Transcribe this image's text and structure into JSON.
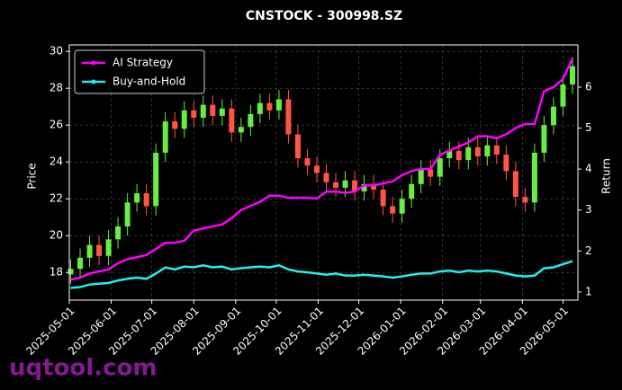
{
  "chart_data": {
    "type": "candlestick",
    "title": "CNSTOCK - 300998.SZ",
    "ylabel": "Price",
    "y2label": "Return",
    "watermark": "uqtool.com",
    "x": [
      "2025-05-02",
      "2025-05-09",
      "2025-05-16",
      "2025-05-23",
      "2025-05-30",
      "2025-06-06",
      "2025-06-13",
      "2025-06-20",
      "2025-06-27",
      "2025-07-04",
      "2025-07-11",
      "2025-07-18",
      "2025-07-25",
      "2025-08-01",
      "2025-08-08",
      "2025-08-15",
      "2025-08-22",
      "2025-08-29",
      "2025-09-05",
      "2025-09-12",
      "2025-09-19",
      "2025-09-26",
      "2025-10-03",
      "2025-10-10",
      "2025-10-17",
      "2025-10-24",
      "2025-10-31",
      "2025-11-07",
      "2025-11-14",
      "2025-11-21",
      "2025-11-28",
      "2025-12-05",
      "2025-12-12",
      "2025-12-19",
      "2025-12-26",
      "2026-01-02",
      "2026-01-09",
      "2026-01-16",
      "2026-01-23",
      "2026-01-30",
      "2026-02-06",
      "2026-02-13",
      "2026-02-20",
      "2026-02-27",
      "2026-03-06",
      "2026-03-13",
      "2026-03-20",
      "2026-03-27",
      "2026-04-03",
      "2026-04-10",
      "2026-04-17",
      "2026-04-24",
      "2026-05-01",
      "2026-05-08"
    ],
    "open": [
      17.9,
      18.2,
      18.8,
      19.5,
      18.9,
      19.8,
      20.5,
      21.8,
      22.3,
      21.6,
      24.5,
      26.2,
      25.8,
      26.8,
      26.4,
      27.1,
      26.5,
      26.9,
      25.6,
      25.9,
      26.6,
      27.2,
      26.8,
      27.4,
      25.5,
      24.2,
      23.8,
      23.4,
      22.9,
      22.6,
      23.0,
      22.4,
      22.8,
      22.5,
      21.6,
      21.2,
      22.0,
      22.8,
      23.6,
      23.2,
      24.2,
      24.6,
      24.1,
      24.8,
      24.3,
      24.9,
      24.4,
      23.5,
      22.1,
      21.8,
      24.5,
      26.0,
      27.0,
      28.2
    ],
    "high": [
      18.7,
      19.3,
      20.0,
      20.0,
      20.3,
      21.0,
      22.3,
      22.8,
      22.8,
      25.0,
      26.7,
      26.7,
      27.3,
      27.3,
      27.6,
      27.6,
      27.4,
      27.4,
      26.4,
      27.1,
      27.7,
      27.7,
      27.9,
      27.9,
      26.0,
      24.7,
      24.3,
      23.9,
      23.4,
      23.5,
      23.5,
      23.3,
      23.3,
      23.0,
      22.1,
      22.5,
      23.3,
      24.1,
      24.1,
      24.7,
      25.1,
      25.1,
      25.3,
      25.3,
      25.4,
      25.4,
      24.9,
      24.0,
      22.6,
      25.0,
      26.5,
      27.5,
      28.7,
      29.7
    ],
    "low": [
      17.4,
      17.7,
      18.3,
      18.4,
      18.4,
      19.3,
      20.0,
      21.3,
      21.1,
      21.1,
      24.0,
      25.3,
      25.3,
      25.9,
      25.9,
      26.0,
      26.0,
      25.1,
      25.1,
      25.4,
      26.1,
      26.3,
      26.3,
      25.0,
      23.7,
      23.3,
      22.9,
      22.4,
      22.1,
      22.1,
      21.9,
      21.9,
      22.0,
      21.1,
      20.7,
      20.7,
      21.5,
      22.3,
      22.7,
      22.7,
      23.7,
      23.6,
      23.6,
      23.8,
      23.8,
      23.9,
      23.0,
      21.6,
      21.3,
      21.3,
      24.0,
      25.5,
      26.5,
      27.7
    ],
    "close": [
      18.2,
      18.8,
      19.5,
      18.9,
      19.8,
      20.5,
      21.8,
      22.3,
      21.6,
      24.5,
      26.2,
      25.8,
      26.8,
      26.4,
      27.1,
      26.5,
      26.9,
      25.6,
      25.9,
      26.6,
      27.2,
      26.8,
      27.4,
      25.5,
      24.2,
      23.8,
      23.4,
      22.9,
      22.6,
      23.0,
      22.4,
      22.8,
      22.5,
      21.6,
      21.2,
      22.0,
      22.8,
      23.6,
      23.2,
      24.2,
      24.6,
      24.1,
      24.8,
      24.3,
      24.9,
      24.4,
      23.5,
      22.1,
      21.8,
      24.5,
      26.0,
      27.0,
      28.2,
      29.2
    ],
    "up_color": "#66ee44",
    "down_color": "#ff5544",
    "series": [
      {
        "name": "AI Strategy",
        "color": "#ff00ff",
        "axis": "y2",
        "values": [
          1.3,
          1.35,
          1.45,
          1.5,
          1.55,
          1.7,
          1.8,
          1.85,
          1.9,
          2.05,
          2.2,
          2.2,
          2.25,
          2.5,
          2.55,
          2.6,
          2.65,
          2.8,
          3.0,
          3.1,
          3.2,
          3.35,
          3.35,
          3.3,
          3.3,
          3.3,
          3.28,
          3.45,
          3.45,
          3.42,
          3.45,
          3.6,
          3.6,
          3.65,
          3.7,
          3.85,
          3.95,
          4.0,
          4.0,
          4.35,
          4.45,
          4.55,
          4.65,
          4.8,
          4.8,
          4.75,
          4.85,
          5.0,
          5.1,
          5.1,
          5.9,
          6.0,
          6.2,
          6.7
        ]
      },
      {
        "name": "Buy-and-Hold",
        "color": "#22eeee",
        "axis": "y2",
        "values": [
          1.1,
          1.12,
          1.18,
          1.2,
          1.22,
          1.28,
          1.32,
          1.35,
          1.32,
          1.45,
          1.6,
          1.55,
          1.62,
          1.6,
          1.65,
          1.6,
          1.62,
          1.55,
          1.58,
          1.6,
          1.62,
          1.6,
          1.65,
          1.55,
          1.5,
          1.48,
          1.45,
          1.42,
          1.45,
          1.4,
          1.4,
          1.42,
          1.4,
          1.38,
          1.35,
          1.38,
          1.42,
          1.45,
          1.45,
          1.5,
          1.52,
          1.48,
          1.52,
          1.5,
          1.52,
          1.5,
          1.45,
          1.4,
          1.38,
          1.4,
          1.58,
          1.6,
          1.68,
          1.75
        ]
      }
    ],
    "xlim": [
      "2025-05-01",
      "2026-05-12"
    ],
    "xticks": [
      "2025-05-01",
      "2025-06-01",
      "2025-07-01",
      "2025-08-01",
      "2025-09-01",
      "2025-10-01",
      "2025-11-01",
      "2025-12-01",
      "2026-01-01",
      "2026-02-01",
      "2026-03-01",
      "2026-04-01",
      "2026-05-01"
    ],
    "ylim": [
      16.5,
      30.35
    ],
    "yticks": [
      18,
      20,
      22,
      24,
      26,
      28,
      30
    ],
    "y2lim": [
      0.8,
      7.03
    ],
    "y2ticks": [
      1,
      2,
      3,
      4,
      5,
      6
    ],
    "grid": true,
    "legend": "upper left"
  }
}
